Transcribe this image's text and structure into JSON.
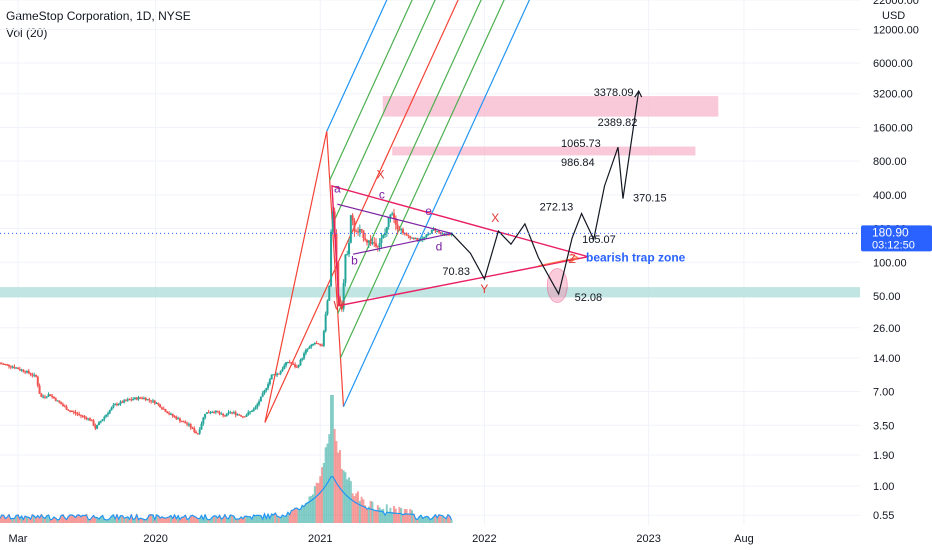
{
  "header": {
    "title": "GameStop Corporation, 1D, NYSE",
    "volume_label": "Vol (20)"
  },
  "currency": "USD",
  "price_tag": {
    "value": "180.90",
    "countdown": "03:12:50",
    "color": "#2962ff"
  },
  "colors": {
    "candle_up": "#26a69a",
    "candle_down": "#ef5350",
    "pitchfork_blue": "#2196f3",
    "pitchfork_green": "#4caf50",
    "pitchfork_red": "#f44336",
    "triangle": "#e91e63",
    "projection": "#131722",
    "zone_pink": "#f8bbd0",
    "zone_teal": "#b2dfdb",
    "wave_red": "#e53935",
    "wave_purple": "#7b1fa2",
    "trap": "#2962ff",
    "volume_ma": "#2196f3"
  },
  "chart_data": {
    "type": "candlestick",
    "title": "GameStop Corporation, 1D, NYSE",
    "y_scale": "log",
    "ylim": [
      0.45,
      22000
    ],
    "y_ticks": [
      "22000.00",
      "12000.00",
      "6000.00",
      "3200.00",
      "1600.00",
      "800.00",
      "400.00",
      "200.00",
      "100.00",
      "50.00",
      "26.00",
      "14.00",
      "7.00",
      "3.50",
      "1.90",
      "1.00",
      "0.55"
    ],
    "y_tick_values": [
      22000,
      12000,
      6000,
      3200,
      1600,
      800,
      400,
      200,
      100,
      50,
      26,
      14,
      7,
      3.5,
      1.9,
      1.0,
      0.55
    ],
    "x_ticks": [
      "Mar",
      "2020",
      "2021",
      "2022",
      "2023",
      "Aug"
    ],
    "x_tick_dates": [
      "2019-03-01",
      "2020-01-01",
      "2021-01-01",
      "2022-01-01",
      "2023-01-01",
      "2023-08-01"
    ],
    "xlim": [
      "2019-01-20",
      "2024-04-15"
    ],
    "price_line": 180.9,
    "price_points": [
      [
        "2019-01-20",
        12.5
      ],
      [
        "2019-02-15",
        11.8
      ],
      [
        "2019-03-20",
        10.5
      ],
      [
        "2019-04-10",
        9.5
      ],
      [
        "2019-04-20",
        6.2
      ],
      [
        "2019-05-10",
        6.6
      ],
      [
        "2019-06-20",
        4.8
      ],
      [
        "2019-08-10",
        3.9
      ],
      [
        "2019-08-20",
        3.3
      ],
      [
        "2019-09-05",
        4.0
      ],
      [
        "2019-10-01",
        5.3
      ],
      [
        "2019-11-01",
        5.9
      ],
      [
        "2019-12-01",
        6.2
      ],
      [
        "2020-01-01",
        5.6
      ],
      [
        "2020-02-01",
        4.4
      ],
      [
        "2020-03-15",
        3.5
      ],
      [
        "2020-04-03",
        2.9
      ],
      [
        "2020-04-20",
        4.5
      ],
      [
        "2020-05-10",
        4.7
      ],
      [
        "2020-06-01",
        4.2
      ],
      [
        "2020-06-15",
        4.6
      ],
      [
        "2020-07-15",
        4.2
      ],
      [
        "2020-08-10",
        5.0
      ],
      [
        "2020-08-31",
        7.2
      ],
      [
        "2020-09-15",
        9.8
      ],
      [
        "2020-10-01",
        10.2
      ],
      [
        "2020-10-20",
        13.0
      ],
      [
        "2020-11-10",
        11.5
      ],
      [
        "2020-12-01",
        16.5
      ],
      [
        "2020-12-20",
        19.0
      ],
      [
        "2021-01-05",
        17.5
      ],
      [
        "2021-01-15",
        39.0
      ],
      [
        "2021-01-22",
        65.0
      ],
      [
        "2021-01-27",
        347.0
      ],
      [
        "2021-02-01",
        225.0
      ],
      [
        "2021-02-10",
        50.0
      ],
      [
        "2021-02-19",
        40.0
      ],
      [
        "2021-02-25",
        108.0
      ],
      [
        "2021-03-05",
        137.0
      ],
      [
        "2021-03-10",
        265.0
      ],
      [
        "2021-03-20",
        181.0
      ],
      [
        "2021-03-31",
        190.0
      ],
      [
        "2021-04-15",
        155.0
      ],
      [
        "2021-05-10",
        145.0
      ],
      [
        "2021-05-25",
        180.0
      ],
      [
        "2021-06-08",
        302.0
      ],
      [
        "2021-06-20",
        215.0
      ],
      [
        "2021-07-10",
        175.0
      ],
      [
        "2021-08-05",
        158.0
      ],
      [
        "2021-08-20",
        165.0
      ],
      [
        "2021-09-10",
        198.0
      ],
      [
        "2021-10-01",
        175.0
      ],
      [
        "2021-10-20",
        181.0
      ]
    ],
    "projection_path": [
      [
        "2021-10-20",
        181.0
      ],
      [
        "2021-12-01",
        120.0
      ],
      [
        "2022-01-01",
        70.83
      ],
      [
        "2022-02-01",
        190.0
      ],
      [
        "2022-03-01",
        145.0
      ],
      [
        "2022-04-01",
        220.0
      ],
      [
        "2022-05-01",
        110.0
      ],
      [
        "2022-06-15",
        52.08
      ],
      [
        "2022-07-15",
        165.07
      ],
      [
        "2022-08-05",
        272.13
      ],
      [
        "2022-09-01",
        160.0
      ],
      [
        "2022-09-25",
        480.0
      ],
      [
        "2022-10-25",
        1065.73
      ],
      [
        "2022-11-05",
        370.15
      ],
      [
        "2022-12-10",
        3378.09
      ]
    ],
    "annotations": [
      {
        "text": "3378.09",
        "date": "2022-12-10",
        "price": 3378.09
      },
      {
        "text": "2389.82",
        "date": "2022-12-12",
        "price": 2389.82
      },
      {
        "text": "1065.73",
        "date": "2022-10-25",
        "price": 1065.73
      },
      {
        "text": "986.84",
        "date": "2022-10-25",
        "price": 986.84
      },
      {
        "text": "370.15",
        "date": "2022-11-05",
        "price": 370.15
      },
      {
        "text": "272.13",
        "date": "2022-08-05",
        "price": 272.13
      },
      {
        "text": "165.07",
        "date": "2022-07-15",
        "price": 165.07
      },
      {
        "text": "70.83",
        "date": "2022-01-01",
        "price": 70.83
      },
      {
        "text": "52.08",
        "date": "2022-06-15",
        "price": 52.08
      }
    ],
    "wave_labels": [
      {
        "text": "a",
        "date": "2021-02-08",
        "price": 420.0,
        "color": "#7b1fa2"
      },
      {
        "text": "X",
        "date": "2021-05-15",
        "price": 560.0,
        "color": "#e53935"
      },
      {
        "text": "c",
        "date": "2021-05-18",
        "price": 370.0,
        "color": "#7b1fa2"
      },
      {
        "text": "b",
        "date": "2021-03-18",
        "price": 95.0,
        "color": "#7b1fa2"
      },
      {
        "text": "e",
        "date": "2021-08-30",
        "price": 265.0,
        "color": "#7b1fa2"
      },
      {
        "text": "d",
        "date": "2021-09-22",
        "price": 128.0,
        "color": "#7b1fa2"
      },
      {
        "text": "X",
        "date": "2022-01-25",
        "price": 228.0,
        "color": "#e53935"
      },
      {
        "text": "W",
        "date": "2021-02-12",
        "price": 38.0,
        "color": "#e53935"
      },
      {
        "text": "Y",
        "date": "2022-01-01",
        "price": 53.0,
        "color": "#e53935"
      },
      {
        "text": "Z",
        "date": "2022-07-15",
        "price": 98.0,
        "color": "#e53935"
      }
    ],
    "trap_label": "bearish trap zone",
    "zones": [
      {
        "from": "2021-05-20",
        "to": "2023-06-05",
        "low": 2000.0,
        "high": 3050.0,
        "color": "#f8bbd0"
      },
      {
        "from": "2021-06-10",
        "to": "2023-04-15",
        "low": 900.0,
        "high": 1080.0,
        "color": "#f8bbd0"
      },
      {
        "from": "2019-01-20",
        "to": "2024-04-15",
        "low": 48.5,
        "high": 60.0,
        "color": "#b2dfdb"
      }
    ],
    "volume_note": "Volume histogram with 20-period moving average, peak in late January 2021"
  }
}
